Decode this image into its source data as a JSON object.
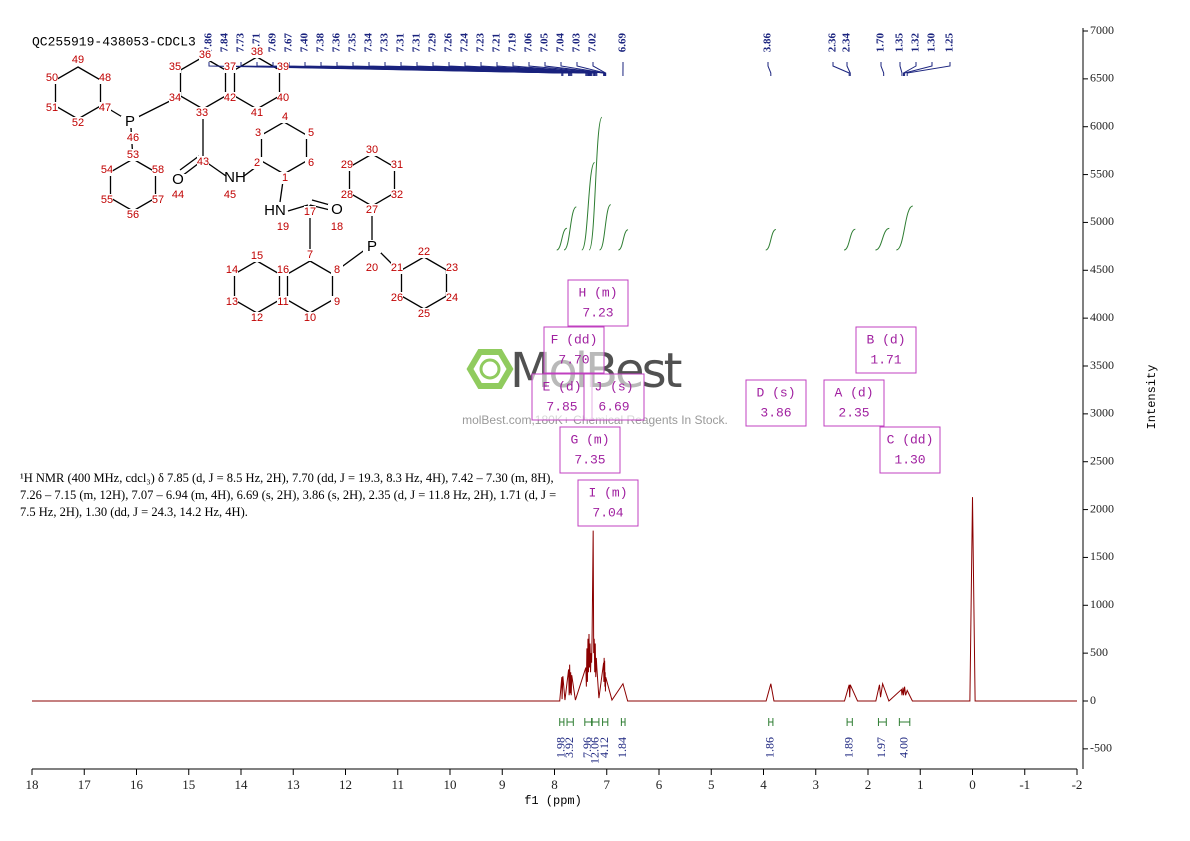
{
  "chart_data": {
    "type": "line",
    "title": "QC255919-438053-CDCL3",
    "x_label": "f1 (ppm)",
    "y_label": "Intensity",
    "color": "#8b0000",
    "x": [
      18,
      7.9,
      7.86,
      7.855,
      7.84,
      7.8,
      7.73,
      7.72,
      7.71,
      7.7,
      7.69,
      7.68,
      7.67,
      7.6,
      7.4,
      7.39,
      7.38,
      7.37,
      7.36,
      7.35,
      7.34,
      7.33,
      7.32,
      7.31,
      7.3,
      7.29,
      7.28,
      7.26,
      7.25,
      7.24,
      7.23,
      7.22,
      7.21,
      7.2,
      7.19,
      7.15,
      7.06,
      7.055,
      7.05,
      7.045,
      7.04,
      7.035,
      7.03,
      7.025,
      7.02,
      6.9,
      6.69,
      6.6,
      3.95,
      3.86,
      3.8,
      2.45,
      2.36,
      2.35,
      2.34,
      2.2,
      1.85,
      1.78,
      1.76,
      1.72,
      1.7,
      1.6,
      1.36,
      1.35,
      1.33,
      1.32,
      1.3,
      1.28,
      1.25,
      1.15,
      0.05,
      0,
      -0.05,
      -2
    ],
    "values": [
      0,
      0,
      250,
      20,
      260,
      10,
      330,
      60,
      380,
      80,
      300,
      60,
      270,
      10,
      350,
      150,
      550,
      200,
      650,
      300,
      700,
      350,
      600,
      300,
      500,
      400,
      700,
      1780,
      500,
      650,
      300,
      600,
      250,
      450,
      350,
      30,
      400,
      200,
      450,
      200,
      420,
      150,
      300,
      100,
      250,
      10,
      180,
      0,
      0,
      180,
      0,
      0,
      170,
      40,
      170,
      0,
      0,
      170,
      40,
      180,
      150,
      0,
      120,
      60,
      140,
      60,
      150,
      60,
      110,
      0,
      0,
      2130,
      0,
      0
    ],
    "xlim": [
      18,
      -2
    ],
    "xticks": [
      18,
      17,
      16,
      15,
      14,
      13,
      12,
      11,
      10,
      9,
      8,
      7,
      6,
      5,
      4,
      3,
      2,
      1,
      0,
      -1,
      -2
    ],
    "ylim": [
      -700,
      7000
    ],
    "yticks": [
      -500,
      0,
      500,
      1000,
      1500,
      2000,
      2500,
      3000,
      3500,
      4000,
      4500,
      5000,
      5500,
      6000,
      6500,
      7000
    ],
    "peak_labels": [
      {
        "value": 7.86,
        "label": "7.86"
      },
      {
        "value": 7.84,
        "label": "7.84"
      },
      {
        "value": 7.73,
        "label": "7.73"
      },
      {
        "value": 7.71,
        "label": "7.71"
      },
      {
        "value": 7.69,
        "label": "7.69"
      },
      {
        "value": 7.67,
        "label": "7.67"
      },
      {
        "value": 7.4,
        "label": "7.40"
      },
      {
        "value": 7.38,
        "label": "7.38"
      },
      {
        "value": 7.36,
        "label": "7.36"
      },
      {
        "value": 7.35,
        "label": "7.35"
      },
      {
        "value": 7.34,
        "label": "7.34"
      },
      {
        "value": 7.33,
        "label": "7.33"
      },
      {
        "value": 7.31,
        "label": "7.31"
      },
      {
        "value": 7.31,
        "label": "7.31"
      },
      {
        "value": 7.29,
        "label": "7.29"
      },
      {
        "value": 7.26,
        "label": "7.26"
      },
      {
        "value": 7.24,
        "label": "7.24"
      },
      {
        "value": 7.23,
        "label": "7.23"
      },
      {
        "value": 7.21,
        "label": "7.21"
      },
      {
        "value": 7.19,
        "label": "7.19"
      },
      {
        "value": 7.06,
        "label": "7.06"
      },
      {
        "value": 7.05,
        "label": "7.05"
      },
      {
        "value": 7.04,
        "label": "7.04"
      },
      {
        "value": 7.03,
        "label": "7.03"
      },
      {
        "value": 7.02,
        "label": "7.02"
      },
      {
        "value": 6.69,
        "label": "6.69"
      },
      {
        "value": 3.86,
        "label": "3.86"
      },
      {
        "value": 2.36,
        "label": "2.36"
      },
      {
        "value": 2.34,
        "label": "2.34"
      },
      {
        "value": 1.7,
        "label": "1.70"
      },
      {
        "value": 1.35,
        "label": "1.35"
      },
      {
        "value": 1.32,
        "label": "1.32"
      },
      {
        "value": 1.3,
        "label": "1.30"
      },
      {
        "value": 1.25,
        "label": "1.25"
      }
    ],
    "integrals": {
      "from": [
        7.9,
        7.76,
        7.42,
        7.28,
        7.08,
        6.72,
        3.9,
        2.4,
        1.8,
        1.4
      ],
      "to": [
        7.82,
        7.64,
        7.29,
        7.15,
        6.98,
        6.65,
        3.82,
        2.3,
        1.65,
        1.2
      ],
      "values": [
        1.98,
        3.92,
        7.96,
        12.06,
        4.12,
        1.84,
        1.86,
        1.89,
        1.97,
        4.0
      ],
      "value_labels": [
        "1.98",
        "3.92",
        "7.96",
        "12.06",
        "4.12",
        "1.84",
        "1.86",
        "1.89",
        "1.97",
        "4.00"
      ]
    },
    "multiplets": [
      {
        "name": "H (m)",
        "shift": "7.23"
      },
      {
        "name": "F (dd)",
        "shift": "7.70"
      },
      {
        "name": "E (d)",
        "shift": "7.85"
      },
      {
        "name": "J (s)",
        "shift": "6.69"
      },
      {
        "name": "G (m)",
        "shift": "7.35"
      },
      {
        "name": "I (m)",
        "shift": "7.04"
      },
      {
        "name": "D (s)",
        "shift": "3.86"
      },
      {
        "name": "A (d)",
        "shift": "2.35"
      },
      {
        "name": "B (d)",
        "shift": "1.71"
      },
      {
        "name": "C (dd)",
        "shift": "1.30"
      }
    ],
    "description": "¹H NMR (400 MHz, cdcl₃) δ 7.85 (d, J = 8.5 Hz, 2H), 7.70 (dd, J = 19.3, 8.3 Hz, 4H), 7.42 – 7.30 (m, 8H), 7.26 – 7.15 (m, 12H), 7.07 – 6.94 (m, 4H), 6.69 (s, 2H), 3.86 (s, 2H), 2.35 (d, J = 11.8 Hz, 2H), 1.71 (d, J = 7.5 Hz, 2H), 1.30 (dd, J = 24.3, 14.2 Hz, 4H).",
    "watermark": "MolBest",
    "watermark_text": "molBest.com,180K+ Chemical Reagents In Stock."
  },
  "structure": {
    "labels": [
      "49",
      "48",
      "50",
      "47",
      "51",
      "52",
      "P",
      "46",
      "35",
      "34",
      "36",
      "37",
      "38",
      "39",
      "33",
      "42",
      "41",
      "40",
      "3",
      "4",
      "5",
      "6",
      "2",
      "1",
      "43",
      "O",
      "44",
      "NH",
      "45",
      "53",
      "58",
      "54",
      "57",
      "55",
      "56",
      "HN",
      "19",
      "17",
      "O",
      "18",
      "29",
      "30",
      "31",
      "28",
      "32",
      "27",
      "P",
      "20",
      "7",
      "15",
      "16",
      "8",
      "14",
      "13",
      "11",
      "9",
      "12",
      "10",
      "21",
      "22",
      "23",
      "26",
      "24",
      "25"
    ]
  }
}
